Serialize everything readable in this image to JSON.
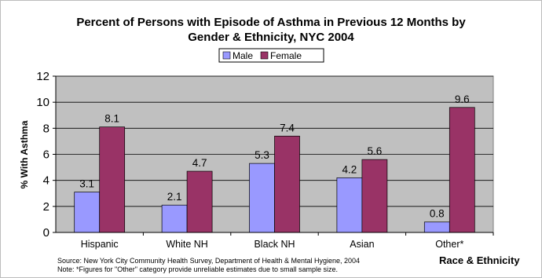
{
  "chart_data": {
    "type": "bar",
    "title": "Percent of Persons with Episode of Asthma in Previous 12 Months by",
    "subtitle": "Gender & Ethnicity, NYC 2004",
    "categories": [
      "Hispanic",
      "White NH",
      "Black NH",
      "Asian",
      "Other*"
    ],
    "series": [
      {
        "name": "Male",
        "values": [
          3.1,
          2.1,
          5.3,
          4.2,
          0.8
        ],
        "color": "#9999ff"
      },
      {
        "name": "Female",
        "values": [
          8.1,
          4.7,
          7.4,
          5.6,
          9.6
        ],
        "color": "#993366"
      }
    ],
    "data_labels": [
      [
        "3.1",
        "2.1",
        "5.3",
        "4.2",
        "0.8"
      ],
      [
        "8.1",
        "4.7",
        "7.4",
        "5.6",
        "9.6"
      ]
    ],
    "ylabel": "% With Asthma",
    "xlabel": "Race & Ethnicity",
    "ylim": [
      0,
      12
    ],
    "yticks": [
      0,
      2,
      4,
      6,
      8,
      10,
      12
    ],
    "grid": true,
    "legend_position": "top-center",
    "plot_background": "#c0c0c0",
    "source": "Source: New York City Community Health Survey, Department of Health & Mental Hygiene, 2004",
    "note": "Note: *Figures for \"Other\" category provide unreliable estimates due to small sample size."
  }
}
